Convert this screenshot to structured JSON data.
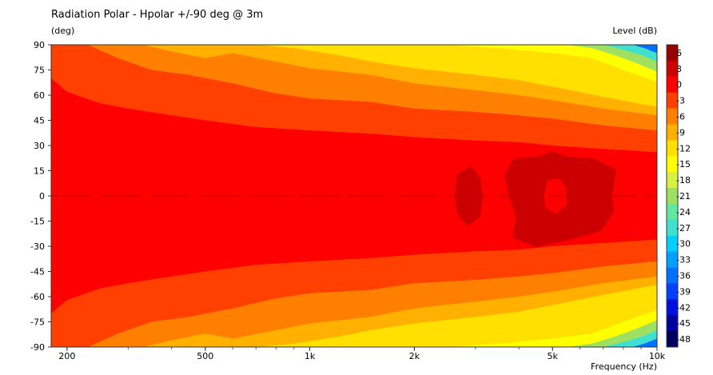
{
  "chart_data": {
    "type": "heatmap",
    "title": "Radiation Polar - Hpolar +/-90 deg @ 3m",
    "ylabel": "(deg)",
    "xlabel": "Frequency  (Hz)",
    "colorbar_label": "Level  (dB)",
    "x_scale": "log",
    "xlim": [
      180,
      10000
    ],
    "ylim": [
      -90,
      90
    ],
    "x_ticks": [
      {
        "value": 200,
        "label": "200"
      },
      {
        "value": 500,
        "label": "500"
      },
      {
        "value": 1000,
        "label": "1k"
      },
      {
        "value": 2000,
        "label": "2k"
      },
      {
        "value": 5000,
        "label": "5k"
      },
      {
        "value": 10000,
        "label": "10k"
      }
    ],
    "y_ticks": [
      "90",
      "75",
      "60",
      "45",
      "30",
      "15",
      "0",
      "-15",
      "-30",
      "-45",
      "-60",
      "-75",
      "-90"
    ],
    "colorbar_ticks": [
      "6",
      "3",
      "0",
      "-3",
      "-6",
      "-9",
      "-12",
      "-15",
      "-18",
      "-21",
      "-24",
      "-27",
      "-30",
      "-33",
      "-36",
      "-39",
      "-42",
      "-45",
      "-48"
    ],
    "colorbar_colors": [
      "#990000",
      "#cc0000",
      "#ff0000",
      "#ff4000",
      "#ff8000",
      "#ffb000",
      "#ffe000",
      "#ffff00",
      "#d8f040",
      "#a0e060",
      "#60e8a0",
      "#40e0d0",
      "#00d0ff",
      "#00a0ff",
      "#0070ff",
      "#0040ff",
      "#0010e0",
      "#0000a0",
      "#000060"
    ],
    "contours": [
      {
        "level": "-6 .. -3",
        "color": "#ff4000",
        "boundary": [
          [
            180,
            70
          ],
          [
            200,
            62
          ],
          [
            250,
            55
          ],
          [
            300,
            52
          ],
          [
            400,
            48
          ],
          [
            500,
            45
          ],
          [
            700,
            41
          ],
          [
            1000,
            39
          ],
          [
            1500,
            37
          ],
          [
            2000,
            35
          ],
          [
            3000,
            33
          ],
          [
            4000,
            32
          ],
          [
            5000,
            30
          ],
          [
            7000,
            28
          ],
          [
            10000,
            26
          ]
        ]
      },
      {
        "level": "-9 .. -6",
        "color": "#ff8000",
        "boundary": [
          [
            180,
            90
          ],
          [
            230,
            90
          ],
          [
            280,
            82
          ],
          [
            350,
            75
          ],
          [
            450,
            72
          ],
          [
            600,
            67
          ],
          [
            800,
            61
          ],
          [
            1000,
            58
          ],
          [
            1500,
            56
          ],
          [
            2000,
            52
          ],
          [
            3000,
            50
          ],
          [
            4000,
            48
          ],
          [
            5000,
            46
          ],
          [
            7000,
            42
          ],
          [
            10000,
            39
          ]
        ]
      },
      {
        "level": "-12 .. -9",
        "color": "#ffb000",
        "boundary": [
          [
            260,
            90
          ],
          [
            330,
            90
          ],
          [
            400,
            86
          ],
          [
            500,
            82
          ],
          [
            600,
            85
          ],
          [
            800,
            80
          ],
          [
            1000,
            76
          ],
          [
            1500,
            72
          ],
          [
            2000,
            67
          ],
          [
            3000,
            63
          ],
          [
            4000,
            60
          ],
          [
            5000,
            57
          ],
          [
            7000,
            52
          ],
          [
            10000,
            48
          ]
        ]
      },
      {
        "level": "-15 .. -12",
        "color": "#ffe000",
        "boundary": [
          [
            480,
            90
          ],
          [
            700,
            90
          ],
          [
            900,
            88
          ],
          [
            1200,
            84
          ],
          [
            1500,
            80
          ],
          [
            2000,
            76
          ],
          [
            3000,
            72
          ],
          [
            4000,
            69
          ],
          [
            5000,
            65
          ],
          [
            7000,
            59
          ],
          [
            10000,
            53
          ]
        ]
      },
      {
        "level": "-18 .. -15",
        "color": "#ffff00",
        "boundary": [
          [
            1500,
            90
          ],
          [
            2500,
            90
          ],
          [
            3500,
            88
          ],
          [
            5000,
            85
          ],
          [
            6500,
            82
          ],
          [
            8000,
            75
          ],
          [
            10000,
            68
          ]
        ]
      },
      {
        "level": "-24 .. -18",
        "color": "#a0e060",
        "boundary": [
          [
            5500,
            90
          ],
          [
            6500,
            88
          ],
          [
            7500,
            84
          ],
          [
            8500,
            80
          ],
          [
            10000,
            74
          ]
        ]
      },
      {
        "level": "-30 .. -24",
        "color": "#40e0d0",
        "boundary": [
          [
            7000,
            90
          ],
          [
            8000,
            87
          ],
          [
            9000,
            84
          ],
          [
            10000,
            80
          ]
        ]
      },
      {
        "level": "< -30",
        "color": "#0070ff",
        "boundary": [
          [
            8500,
            90
          ],
          [
            9200,
            88
          ],
          [
            10000,
            85
          ]
        ]
      }
    ],
    "peaks": [
      {
        "level": "3 .. 6",
        "color": "#cc0000",
        "region": [
          [
            2650,
            0
          ],
          [
            2700,
            12
          ],
          [
            2900,
            16
          ],
          [
            3050,
            10
          ],
          [
            3100,
            0
          ],
          [
            3050,
            -12
          ],
          [
            2850,
            -16
          ],
          [
            2700,
            -10
          ]
        ]
      },
      {
        "level": "3 .. 6",
        "color": "#cc0000",
        "region": [
          [
            3800,
            0
          ],
          [
            3700,
            12
          ],
          [
            3900,
            21
          ],
          [
            4500,
            22
          ],
          [
            5000,
            25
          ],
          [
            5500,
            22
          ],
          [
            6500,
            21
          ],
          [
            7500,
            15
          ],
          [
            7300,
            0
          ],
          [
            7400,
            -9
          ],
          [
            6800,
            -20
          ],
          [
            5500,
            -25
          ],
          [
            4500,
            -29
          ],
          [
            3900,
            -24
          ],
          [
            4000,
            -12
          ]
        ]
      }
    ],
    "holes": [
      {
        "level": "0 .. 3",
        "color": "#ff0000",
        "region": [
          [
            4800,
            0
          ],
          [
            4900,
            8
          ],
          [
            5200,
            9
          ],
          [
            5400,
            4
          ],
          [
            5400,
            -5
          ],
          [
            5100,
            -9
          ],
          [
            4850,
            -6
          ]
        ]
      }
    ]
  }
}
